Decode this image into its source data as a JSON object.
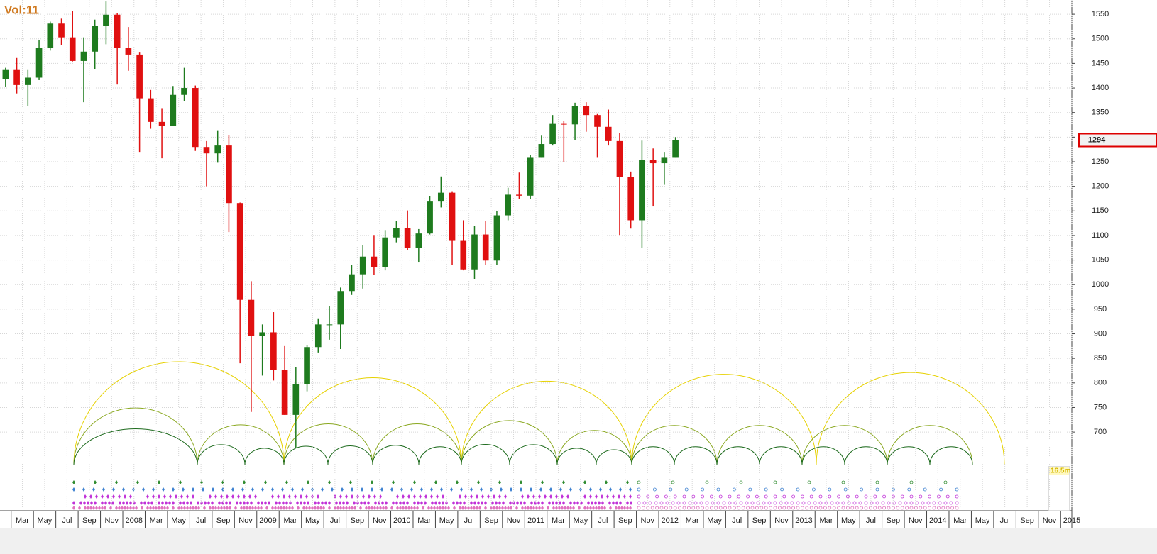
{
  "chart_data": {
    "type": "candlestick",
    "label": "Vol:11",
    "categories": [
      "2007-01",
      "2007-02",
      "2007-03",
      "2007-04",
      "2007-05",
      "2007-06",
      "2007-07",
      "2007-08",
      "2007-09",
      "2007-10",
      "2007-11",
      "2007-12",
      "2008-01",
      "2008-02",
      "2008-03",
      "2008-04",
      "2008-05",
      "2008-06",
      "2008-07",
      "2008-08",
      "2008-09",
      "2008-10",
      "2008-11",
      "2008-12",
      "2009-01",
      "2009-02",
      "2009-03",
      "2009-04",
      "2009-05",
      "2009-06",
      "2009-07",
      "2009-08",
      "2009-09",
      "2009-10",
      "2009-11",
      "2009-12",
      "2010-01",
      "2010-02",
      "2010-03",
      "2010-04",
      "2010-05",
      "2010-06",
      "2010-07",
      "2010-08",
      "2010-09",
      "2010-10",
      "2010-11",
      "2010-12",
      "2011-01",
      "2011-02",
      "2011-03",
      "2011-04",
      "2011-05",
      "2011-06",
      "2011-07",
      "2011-08",
      "2011-09",
      "2011-10",
      "2011-11",
      "2011-12",
      "2012-01"
    ],
    "open": [
      1418,
      1438,
      1406,
      1421,
      1482,
      1531,
      1503,
      1455,
      1474,
      1527,
      1549,
      1481,
      1468,
      1379,
      1331,
      1323,
      1386,
      1400,
      1280,
      1267,
      1283,
      1166,
      969,
      896,
      903,
      826,
      735,
      798,
      873,
      919,
      919,
      987,
      1021,
      1057,
      1036,
      1096,
      1115,
      1074,
      1104,
      1169,
      1187,
      1089,
      1031,
      1102,
      1049,
      1141,
      1183,
      1181,
      1258,
      1286,
      1327,
      1326,
      1364,
      1345,
      1321,
      1292,
      1219,
      1131,
      1253,
      1247,
      1258
    ],
    "high": [
      1441,
      1461,
      1438,
      1498,
      1535,
      1541,
      1556,
      1503,
      1539,
      1576,
      1552,
      1524,
      1472,
      1396,
      1359,
      1404,
      1441,
      1405,
      1292,
      1314,
      1304,
      1167,
      1007,
      919,
      944,
      875,
      832,
      877,
      930,
      956,
      994,
      1040,
      1080,
      1101,
      1111,
      1130,
      1151,
      1113,
      1180,
      1220,
      1190,
      1131,
      1120,
      1130,
      1149,
      1197,
      1228,
      1263,
      1303,
      1345,
      1333,
      1370,
      1371,
      1347,
      1356,
      1308,
      1230,
      1293,
      1277,
      1270,
      1300
    ],
    "low": [
      1403,
      1389,
      1364,
      1416,
      1476,
      1487,
      1454,
      1371,
      1439,
      1489,
      1407,
      1435,
      1270,
      1317,
      1257,
      1323,
      1373,
      1272,
      1200,
      1248,
      1107,
      840,
      741,
      815,
      805,
      735,
      667,
      783,
      862,
      888,
      869,
      979,
      992,
      1020,
      1029,
      1086,
      1071,
      1045,
      1102,
      1157,
      1040,
      1029,
      1011,
      1040,
      1040,
      1131,
      1174,
      1174,
      1258,
      1283,
      1249,
      1294,
      1311,
      1258,
      1283,
      1101,
      1114,
      1075,
      1159,
      1203,
      1258
    ],
    "close": [
      1438,
      1406,
      1421,
      1482,
      1531,
      1503,
      1455,
      1474,
      1527,
      1549,
      1481,
      1468,
      1379,
      1331,
      1323,
      1386,
      1400,
      1280,
      1267,
      1283,
      1166,
      969,
      896,
      903,
      826,
      735,
      798,
      873,
      919,
      919,
      987,
      1021,
      1057,
      1036,
      1096,
      1115,
      1074,
      1104,
      1169,
      1187,
      1089,
      1031,
      1102,
      1049,
      1141,
      1183,
      1181,
      1258,
      1286,
      1327,
      1326,
      1364,
      1345,
      1321,
      1292,
      1219,
      1131,
      1253,
      1247,
      1258,
      1294
    ],
    "up_color": "#1e7b1e",
    "down_color": "#e01010",
    "xlim": [
      "2007-01",
      "2015-01"
    ],
    "xticks": [
      {
        "value": "2007-03",
        "label": "Mar"
      },
      {
        "value": "2007-05",
        "label": "May"
      },
      {
        "value": "2007-07",
        "label": "Jul"
      },
      {
        "value": "2007-09",
        "label": "Sep"
      },
      {
        "value": "2007-11",
        "label": "Nov"
      },
      {
        "value": "2008-01",
        "label": "2008"
      },
      {
        "value": "2008-03",
        "label": "Mar"
      },
      {
        "value": "2008-05",
        "label": "May"
      },
      {
        "value": "2008-07",
        "label": "Jul"
      },
      {
        "value": "2008-09",
        "label": "Sep"
      },
      {
        "value": "2008-11",
        "label": "Nov"
      },
      {
        "value": "2009-01",
        "label": "2009"
      },
      {
        "value": "2009-03",
        "label": "Mar"
      },
      {
        "value": "2009-05",
        "label": "May"
      },
      {
        "value": "2009-07",
        "label": "Jul"
      },
      {
        "value": "2009-09",
        "label": "Sep"
      },
      {
        "value": "2009-11",
        "label": "Nov"
      },
      {
        "value": "2010-01",
        "label": "2010"
      },
      {
        "value": "2010-03",
        "label": "Mar"
      },
      {
        "value": "2010-05",
        "label": "May"
      },
      {
        "value": "2010-07",
        "label": "Jul"
      },
      {
        "value": "2010-09",
        "label": "Sep"
      },
      {
        "value": "2010-11",
        "label": "Nov"
      },
      {
        "value": "2011-01",
        "label": "2011"
      },
      {
        "value": "2011-03",
        "label": "Mar"
      },
      {
        "value": "2011-05",
        "label": "May"
      },
      {
        "value": "2011-07",
        "label": "Jul"
      },
      {
        "value": "2011-09",
        "label": "Sep"
      },
      {
        "value": "2011-11",
        "label": "Nov"
      },
      {
        "value": "2012-01",
        "label": "2012"
      },
      {
        "value": "2012-03",
        "label": "Mar"
      },
      {
        "value": "2012-05",
        "label": "May"
      },
      {
        "value": "2012-07",
        "label": "Jul"
      },
      {
        "value": "2012-09",
        "label": "Sep"
      },
      {
        "value": "2012-11",
        "label": "Nov"
      },
      {
        "value": "2013-01",
        "label": "2013"
      },
      {
        "value": "2013-03",
        "label": "Mar"
      },
      {
        "value": "2013-05",
        "label": "May"
      },
      {
        "value": "2013-07",
        "label": "Jul"
      },
      {
        "value": "2013-09",
        "label": "Sep"
      },
      {
        "value": "2013-11",
        "label": "Nov"
      },
      {
        "value": "2014-01",
        "label": "2014"
      },
      {
        "value": "2014-03",
        "label": "Mar"
      },
      {
        "value": "2014-05",
        "label": "May"
      },
      {
        "value": "2014-07",
        "label": "Jul"
      },
      {
        "value": "2014-09",
        "label": "Sep"
      },
      {
        "value": "2014-11",
        "label": "Nov"
      },
      {
        "value": "2015-01",
        "label": "2015"
      }
    ],
    "ylim": [
      540,
      1579
    ],
    "yticks": [
      700,
      750,
      800,
      850,
      900,
      950,
      1000,
      1050,
      1100,
      1150,
      1200,
      1250,
      1300,
      1350,
      1400,
      1450,
      1500,
      1550
    ],
    "grid": true,
    "cycle_legend": "16.5m"
  }
}
